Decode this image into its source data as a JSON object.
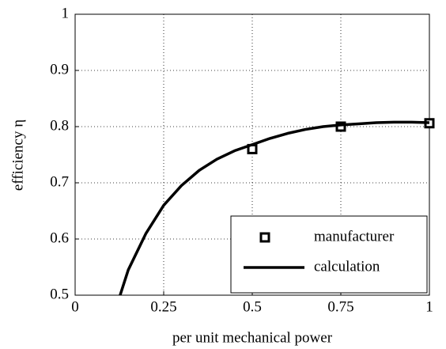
{
  "chart_data": {
    "type": "line",
    "x_label": "per unit mechanical power",
    "y_label": "efficiency η",
    "xlim": [
      0,
      1
    ],
    "xticks": [
      0,
      0.25,
      0.5,
      0.75,
      1
    ],
    "ylim": [
      0.5,
      1
    ],
    "yticks": [
      0.5,
      0.6,
      0.7,
      0.8,
      0.9,
      1
    ],
    "grid": true,
    "legend": "lower right",
    "series": [
      {
        "name": "manufacturer",
        "color": "#000000",
        "style": "marker",
        "x": [
          0.5,
          0.75,
          1
        ],
        "values": [
          0.76,
          0.8,
          0.806
        ]
      },
      {
        "name": "calculation",
        "color": "#000000",
        "style": "line",
        "x": [
          0.127,
          0.15,
          0.2,
          0.25,
          0.3,
          0.35,
          0.4,
          0.45,
          0.5,
          0.55,
          0.6,
          0.65,
          0.7,
          0.75,
          0.8,
          0.85,
          0.9,
          0.95,
          1
        ],
        "values": [
          0.5,
          0.545,
          0.61,
          0.66,
          0.695,
          0.722,
          0.742,
          0.757,
          0.768,
          0.779,
          0.788,
          0.795,
          0.8,
          0.803,
          0.805,
          0.807,
          0.808,
          0.808,
          0.807
        ]
      }
    ]
  }
}
